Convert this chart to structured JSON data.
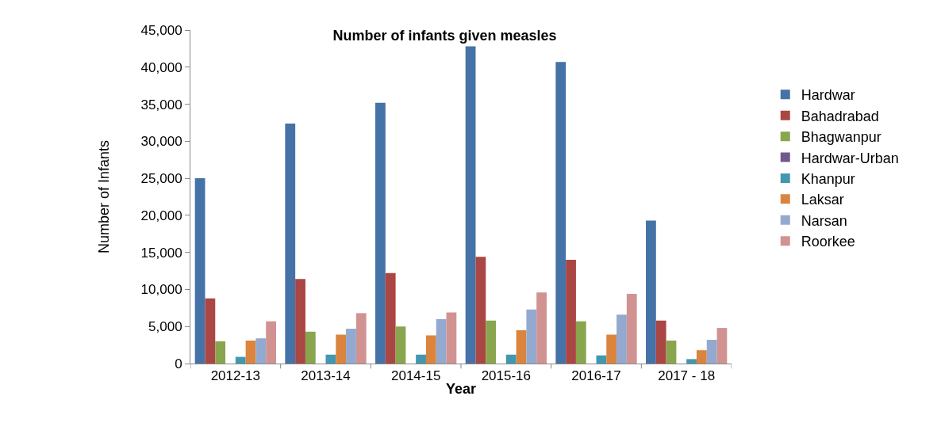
{
  "chart_data": {
    "type": "bar",
    "title": "Number of infants given measles",
    "xlabel": "Year",
    "ylabel": "Number of Infants",
    "categories": [
      "2012-13",
      "2013-14",
      "2014-15",
      "2015-16",
      "2016-17",
      "2017 - 18"
    ],
    "series": [
      {
        "name": "Hardwar",
        "color": "#4572a7",
        "values": [
          25000,
          32400,
          35200,
          42800,
          40700,
          19300
        ]
      },
      {
        "name": "Bahadrabad",
        "color": "#aa4643",
        "values": [
          8800,
          11400,
          12200,
          14400,
          14000,
          5800
        ]
      },
      {
        "name": "Bhagwanpur",
        "color": "#89a54e",
        "values": [
          3000,
          4300,
          5000,
          5800,
          5700,
          3100
        ]
      },
      {
        "name": "Hardwar-Urban",
        "color": "#71588f",
        "values": [
          null,
          null,
          null,
          null,
          null,
          null
        ]
      },
      {
        "name": "Khanpur",
        "color": "#4198af",
        "values": [
          900,
          1200,
          1200,
          1200,
          1100,
          600
        ]
      },
      {
        "name": "Laksar",
        "color": "#db843d",
        "values": [
          3100,
          3900,
          3800,
          4500,
          3900,
          1800
        ]
      },
      {
        "name": "Narsan",
        "color": "#93a9cf",
        "values": [
          3400,
          4700,
          6000,
          7300,
          6600,
          3200
        ]
      },
      {
        "name": "Roorkee",
        "color": "#d19392",
        "values": [
          5700,
          6800,
          6900,
          9600,
          9400,
          4800
        ]
      }
    ],
    "ylim": [
      0,
      45000
    ],
    "yticks": [
      {
        "value": 0,
        "label": "0"
      },
      {
        "value": 5000,
        "label": "5,000"
      },
      {
        "value": 10000,
        "label": "10,000"
      },
      {
        "value": 15000,
        "label": "15,000"
      },
      {
        "value": 20000,
        "label": "20,000"
      },
      {
        "value": 25000,
        "label": "25,000"
      },
      {
        "value": 30000,
        "label": "30,000"
      },
      {
        "value": 35000,
        "label": "35,000"
      },
      {
        "value": 40000,
        "label": "40,000"
      },
      {
        "value": 45000,
        "label": "45,000"
      }
    ],
    "legend": "right"
  }
}
